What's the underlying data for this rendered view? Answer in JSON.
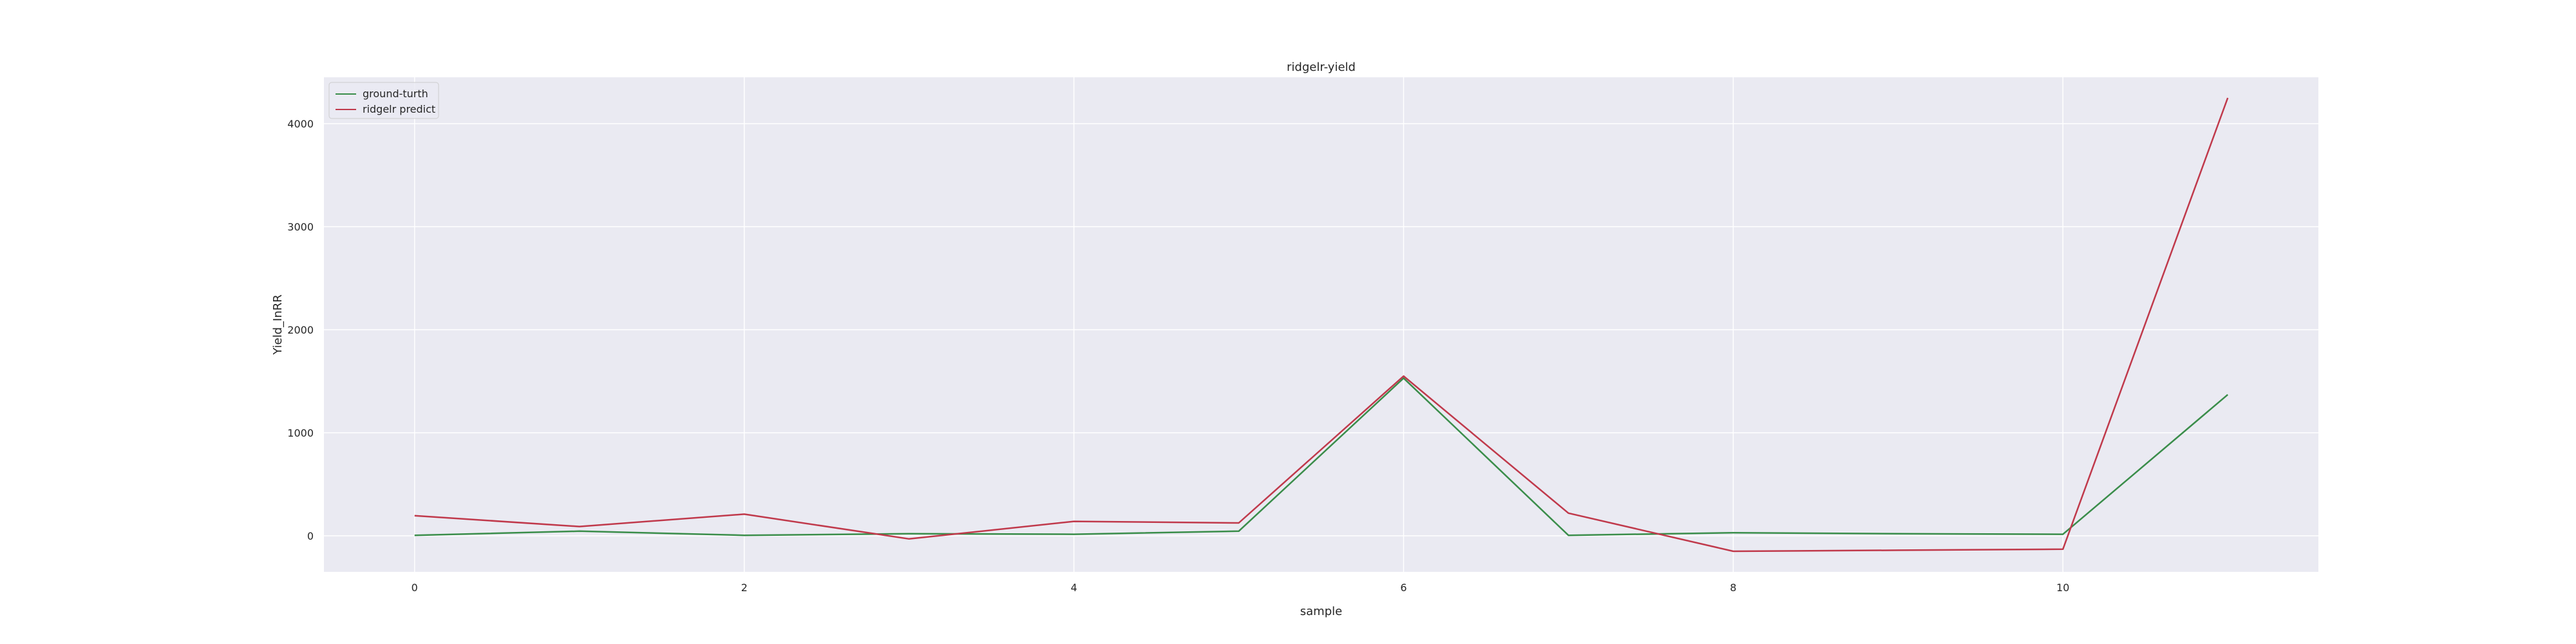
{
  "chart_data": {
    "type": "line",
    "title": "ridgelr-yield",
    "xlabel": "sample",
    "ylabel": "Yield_InRR",
    "x": [
      0,
      1,
      2,
      3,
      4,
      5,
      6,
      7,
      8,
      9,
      10,
      11
    ],
    "xlim": [
      -0.55,
      11.55
    ],
    "ylim": [
      -350,
      4450
    ],
    "x_ticks": [
      0,
      2,
      4,
      6,
      8,
      10
    ],
    "y_ticks": [
      0,
      1000,
      2000,
      3000,
      4000
    ],
    "grid": true,
    "legend_position": "upper left",
    "background": "#eaeaf2",
    "gridline_color": "#ffffff",
    "series": [
      {
        "name": "ground-turth",
        "color": "#3a8d4a",
        "values": [
          5,
          45,
          5,
          20,
          15,
          45,
          1530,
          5,
          30,
          20,
          15,
          1370
        ]
      },
      {
        "name": "ridgelr predict",
        "color": "#c0394b",
        "values": [
          195,
          90,
          210,
          -30,
          140,
          125,
          1550,
          220,
          -150,
          -140,
          -130,
          4250
        ]
      }
    ]
  }
}
